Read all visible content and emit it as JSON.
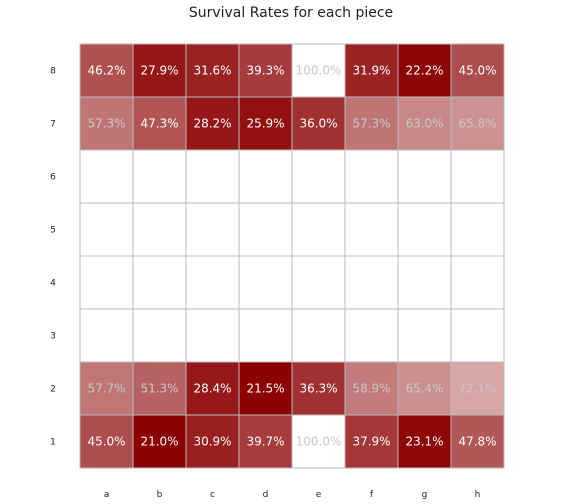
{
  "chart_data": {
    "type": "heatmap",
    "title": "Survival Rates for each piece",
    "xlabel": "",
    "ylabel": "",
    "x_categories": [
      "a",
      "b",
      "c",
      "d",
      "e",
      "f",
      "g",
      "h"
    ],
    "y_categories": [
      "8",
      "7",
      "6",
      "5",
      "4",
      "3",
      "2",
      "1"
    ],
    "values": [
      [
        46.2,
        27.9,
        31.6,
        39.3,
        100.0,
        31.9,
        22.2,
        45.0
      ],
      [
        57.3,
        47.3,
        28.2,
        25.9,
        36.0,
        57.3,
        63.0,
        65.8
      ],
      [
        null,
        null,
        null,
        null,
        null,
        null,
        null,
        null
      ],
      [
        null,
        null,
        null,
        null,
        null,
        null,
        null,
        null
      ],
      [
        null,
        null,
        null,
        null,
        null,
        null,
        null,
        null
      ],
      [
        null,
        null,
        null,
        null,
        null,
        null,
        null,
        null
      ],
      [
        57.7,
        51.3,
        28.4,
        21.5,
        36.3,
        58.9,
        65.4,
        72.1
      ],
      [
        45.0,
        21.0,
        30.9,
        39.7,
        100.0,
        37.9,
        23.1,
        47.8
      ]
    ],
    "value_suffix": "%",
    "colorscale": {
      "low": "#8b0000",
      "high": "#ffffff",
      "range": [
        21,
        100
      ]
    },
    "grid_color": "#bbbbbb"
  }
}
